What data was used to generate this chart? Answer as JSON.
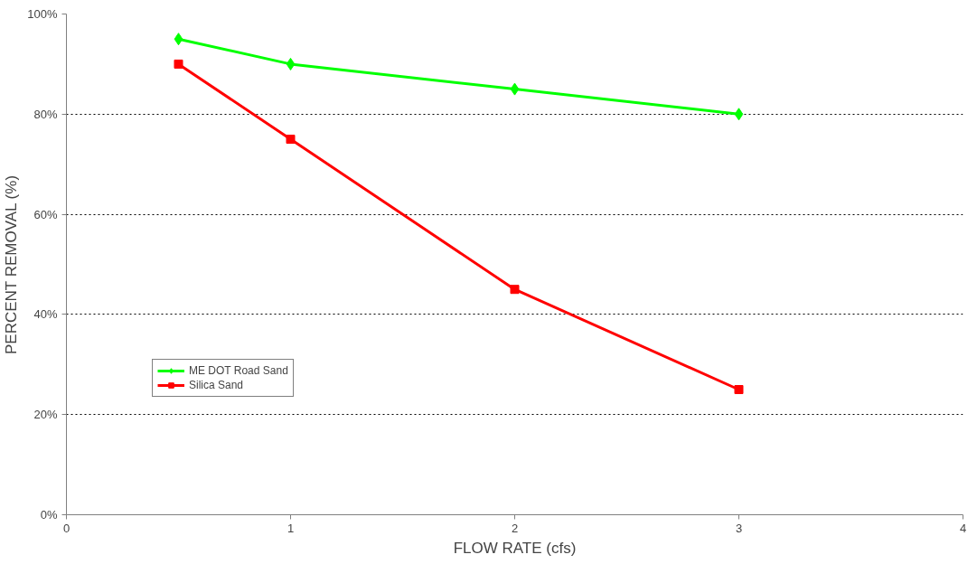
{
  "chart_data": {
    "type": "line",
    "xlabel": "FLOW RATE (cfs)",
    "ylabel": "PERCENT REMOVAL (%)",
    "x": [
      0.5,
      1,
      2,
      3
    ],
    "series": [
      {
        "name": "ME DOT Road Sand",
        "color": "#00ff00",
        "marker": "diamond",
        "values": [
          95,
          90,
          85,
          80
        ]
      },
      {
        "name": "Silica Sand",
        "color": "#ff0000",
        "marker": "square",
        "values": [
          90,
          75,
          45,
          25
        ]
      }
    ],
    "xlim": [
      0,
      4
    ],
    "xticks": [
      0,
      1,
      2,
      3,
      4
    ],
    "ylim": [
      0,
      100
    ],
    "yticks": [
      {
        "value": 0,
        "label": "0%"
      },
      {
        "value": 20,
        "label": "20%"
      },
      {
        "value": 40,
        "label": "40%"
      },
      {
        "value": 60,
        "label": "60%"
      },
      {
        "value": 80,
        "label": "80%"
      },
      {
        "value": 100,
        "label": "100%"
      }
    ],
    "grid": "y",
    "legend": "bottom left",
    "line_style": "solid"
  }
}
